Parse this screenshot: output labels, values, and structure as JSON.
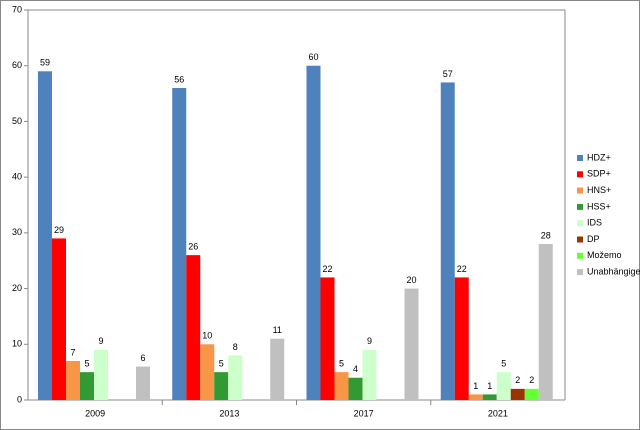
{
  "chart_data": {
    "type": "bar",
    "categories": [
      "2009",
      "2013",
      "2017",
      "2021"
    ],
    "series": [
      {
        "name": "HDZ+",
        "color": "#4f81bd",
        "values": [
          59,
          56,
          60,
          57
        ]
      },
      {
        "name": "SDP+",
        "color": "#ff0000",
        "values": [
          29,
          26,
          22,
          22
        ]
      },
      {
        "name": "HNS+",
        "color": "#f79646",
        "values": [
          7,
          10,
          5,
          1
        ]
      },
      {
        "name": "HSS+",
        "color": "#339933",
        "values": [
          5,
          5,
          4,
          1
        ]
      },
      {
        "name": "IDS",
        "color": "#ccffcc",
        "values": [
          9,
          8,
          9,
          5
        ]
      },
      {
        "name": "DP",
        "color": "#993300",
        "values": [
          null,
          null,
          null,
          2
        ]
      },
      {
        "name": "Možemo",
        "color": "#66ff33",
        "values": [
          null,
          null,
          null,
          2
        ]
      },
      {
        "name": "Unabhängige",
        "color": "#c0c0c0",
        "values": [
          6,
          11,
          20,
          28
        ]
      }
    ],
    "ylim": [
      0,
      70
    ],
    "yticks": [
      0,
      10,
      20,
      30,
      40,
      50,
      60,
      70
    ],
    "grid": false,
    "legend": "right"
  }
}
